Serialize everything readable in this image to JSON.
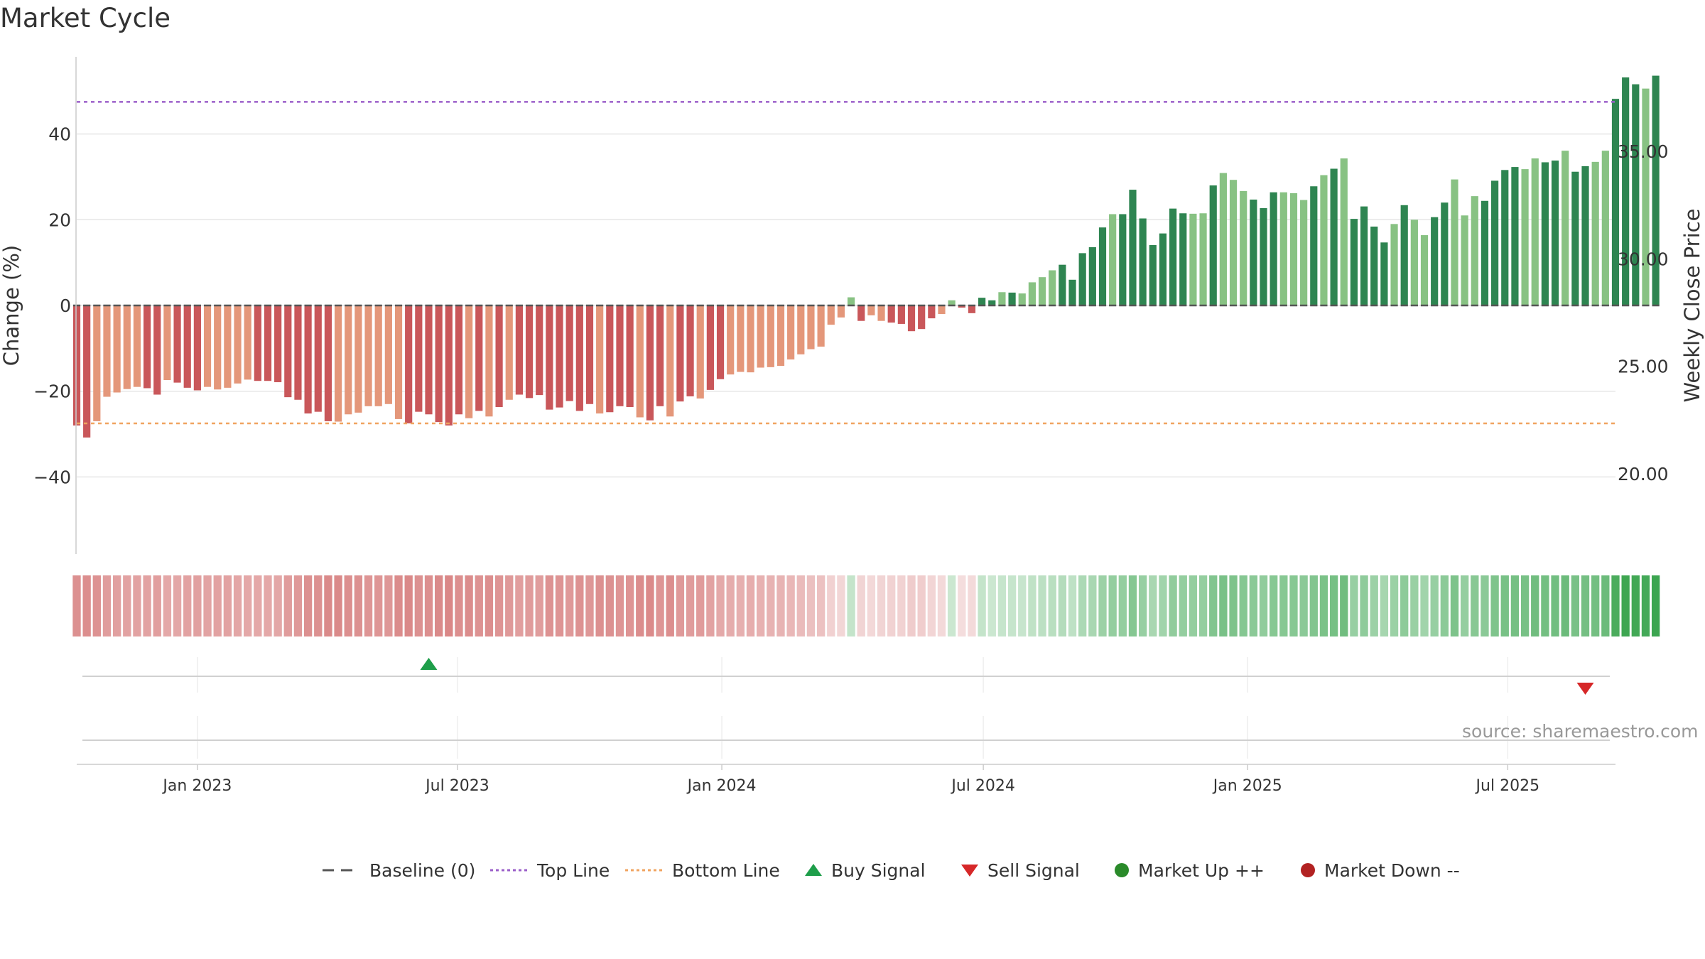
{
  "chart_data": {
    "type": "bar",
    "title": "Market Cycle",
    "ylabel": "Change (%)",
    "y2label": "Weekly Close Price",
    "ylim": [
      -58,
      58
    ],
    "y2lim": [
      16.27,
      39.39
    ],
    "yticks": [
      -40,
      -20,
      0,
      20,
      40
    ],
    "ytick_labels": [
      "−40",
      "−20",
      "0",
      "20",
      "40"
    ],
    "y2ticks": [
      20,
      25,
      30,
      35
    ],
    "y2tick_labels": [
      "20.00",
      "25.00",
      "30.00",
      "35.00"
    ],
    "x_start": "2022-10-09",
    "x_end": "2025-09-14",
    "xticks": [
      {
        "date": "2023-01-01",
        "label": "Jan 2023"
      },
      {
        "date": "2023-07-01",
        "label": "Jul 2023"
      },
      {
        "date": "2024-01-01",
        "label": "Jan 2024"
      },
      {
        "date": "2024-07-01",
        "label": "Jul 2024"
      },
      {
        "date": "2025-01-01",
        "label": "Jan 2025"
      },
      {
        "date": "2025-07-01",
        "label": "Jul 2025"
      }
    ],
    "top_line": 47.5,
    "bottom_line": -27.5,
    "grid": true,
    "colors": {
      "red_dark": "#c9575a",
      "red_light": "#e4977a",
      "green_dark": "#2e8551",
      "green_light": "#88c283",
      "top_line": "#9b5fc9",
      "bottom_line": "#f0a460",
      "baseline": "#555555",
      "buy": "#1e9e4a",
      "sell": "#d62728",
      "market_up": "#2a8a2a",
      "market_down": "#b22222",
      "grid": "#e6e6e6"
    },
    "series": [
      {
        "name": "Change (%)",
        "start_date": "2022-10-09",
        "interval_days": 7,
        "values": [
          -28,
          -30.8,
          -27,
          -21.3,
          -20.3,
          -19.5,
          -19,
          -19.3,
          -20.8,
          -17.4,
          -18,
          -19.2,
          -19.8,
          -19,
          -19.6,
          -19.2,
          -18.2,
          -17.3,
          -17.6,
          -17.6,
          -17.9,
          -21.4,
          -22,
          -25.2,
          -24.8,
          -27,
          -27.1,
          -25.4,
          -25,
          -23.5,
          -23.5,
          -23,
          -26.5,
          -27.5,
          -24.8,
          -25.4,
          -27.2,
          -28,
          -25.4,
          -26.3,
          -24.6,
          -25.9,
          -23.7,
          -22,
          -20.8,
          -21.6,
          -20.9,
          -24.3,
          -23.8,
          -22.3,
          -24.6,
          -23,
          -25.2,
          -24.9,
          -23.5,
          -23.7,
          -26.1,
          -26.8,
          -23.5,
          -25.9,
          -22.4,
          -21.2,
          -21.7,
          -19.7,
          -17.2,
          -16.1,
          -15.5,
          -15.6,
          -14.5,
          -14.4,
          -14.1,
          -12.6,
          -11.4,
          -10.2,
          -9.6,
          -4.5,
          -2.8,
          1.9,
          -3.6,
          -2.3,
          -3.6,
          -4,
          -4.3,
          -6,
          -5.5,
          -3,
          -2,
          1.2,
          -0.5,
          -1.8,
          1.8,
          1.2,
          3.1,
          3,
          2.8,
          5.4,
          6.6,
          8.2,
          9.5,
          6,
          12.2,
          13.6,
          18.2,
          21.3,
          21.3,
          27,
          20.3,
          14.1,
          16.8,
          22.6,
          21.5,
          21.4,
          21.5,
          28,
          30.9,
          29.3,
          26.7,
          24.7,
          22.7,
          26.4,
          26.4,
          26.2,
          24.6,
          27.8,
          30.4,
          31.9,
          34.3,
          20.2,
          23.1,
          18.4,
          14.7,
          19,
          23.4,
          20,
          16.4,
          20.6,
          24,
          29.4,
          21,
          25.5,
          24.4,
          29.1,
          31.6,
          32.3,
          31.8,
          34.3,
          33.4,
          33.8,
          36.1,
          31.2,
          32.5,
          33.5,
          36.1,
          48.2,
          53.2,
          51.6,
          50.6,
          53.6
        ]
      }
    ],
    "bar_shades": "DDLLLLLDDLDDDLLLLLDDDDDDDDLLLLLLLDDDDDDLDLDLDDDDDDDDLDDDLDDLDDLDDLLLLLLLLLLLLLDLLDDDDDLLDDDDLDLLLLDDDDDLDDDDDDDLLDLLLDDDLLLDLDLDDDDLDLLDDLLLDDDDLLDDLDDLLDDDLDDDDDLLLD",
    "strength_strip": [
      0.9,
      0.92,
      0.88,
      0.75,
      0.72,
      0.7,
      0.69,
      0.7,
      0.74,
      0.62,
      0.64,
      0.69,
      0.71,
      0.68,
      0.7,
      0.69,
      0.65,
      0.62,
      0.63,
      0.63,
      0.64,
      0.76,
      0.79,
      0.9,
      0.89,
      0.97,
      0.97,
      0.91,
      0.89,
      0.84,
      0.84,
      0.82,
      0.95,
      0.98,
      0.89,
      0.91,
      0.97,
      1,
      0.91,
      0.94,
      0.88,
      0.92,
      0.85,
      0.79,
      0.74,
      0.77,
      0.75,
      0.87,
      0.85,
      0.8,
      0.88,
      0.82,
      0.9,
      0.89,
      0.84,
      0.85,
      0.93,
      0.96,
      0.84,
      0.92,
      0.8,
      0.76,
      0.78,
      0.7,
      0.61,
      0.58,
      0.55,
      0.56,
      0.52,
      0.51,
      0.5,
      0.45,
      0.41,
      0.36,
      0.34,
      0.16,
      0.1,
      0.07,
      0.13,
      0.08,
      0.13,
      0.14,
      0.15,
      0.21,
      0.2,
      0.11,
      0.07,
      0.02,
      0.02,
      0.06,
      0.07,
      0.02,
      0.06,
      0.06,
      0.05,
      0.1,
      0.12,
      0.15,
      0.18,
      0.11,
      0.23,
      0.25,
      0.34,
      0.4,
      0.4,
      0.5,
      0.38,
      0.26,
      0.31,
      0.42,
      0.4,
      0.4,
      0.4,
      0.52,
      0.58,
      0.55,
      0.5,
      0.46,
      0.42,
      0.49,
      0.49,
      0.49,
      0.46,
      0.52,
      0.57,
      0.6,
      0.64,
      0.38,
      0.43,
      0.34,
      0.27,
      0.35,
      0.44,
      0.37,
      0.31,
      0.38,
      0.45,
      0.55,
      0.39,
      0.48,
      0.46,
      0.54,
      0.59,
      0.6,
      0.59,
      0.64,
      0.62,
      0.63,
      0.67,
      0.58,
      0.61,
      0.62,
      0.67,
      0.9,
      0.99,
      0.96,
      0.94,
      1
    ],
    "signals": [
      {
        "type": "buy",
        "date": "2023-06-11"
      },
      {
        "type": "sell",
        "date": "2025-08-24"
      }
    ],
    "legend_position": "bottom-center",
    "legend": [
      {
        "key": "baseline",
        "label": "Baseline (0)",
        "symbol": "dash",
        "color": "#555555"
      },
      {
        "key": "top",
        "label": "Top Line",
        "symbol": "dot",
        "color": "#9b5fc9"
      },
      {
        "key": "bottom",
        "label": "Bottom Line",
        "symbol": "dot",
        "color": "#f0a460"
      },
      {
        "key": "buy",
        "label": "Buy Signal",
        "symbol": "triangle-up",
        "color": "#1e9e4a"
      },
      {
        "key": "sell",
        "label": "Sell Signal",
        "symbol": "triangle-down",
        "color": "#d62728"
      },
      {
        "key": "up",
        "label": "Market Up ++",
        "symbol": "circle",
        "color": "#2a8a2a"
      },
      {
        "key": "down",
        "label": "Market Down --",
        "symbol": "circle",
        "color": "#b22222"
      }
    ],
    "source": "source: sharemaestro.com"
  }
}
